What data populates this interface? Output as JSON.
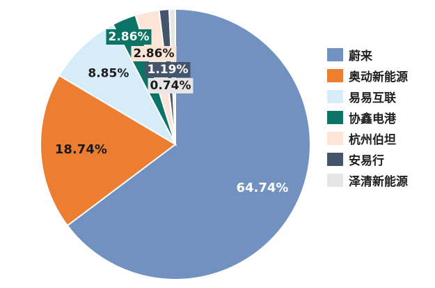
{
  "chart_data": {
    "type": "pie",
    "categories": [
      "蔚来",
      "奥动新能源",
      "易易互联",
      "协鑫电港",
      "杭州伯坦",
      "安易行",
      "泽清新能源"
    ],
    "values": [
      64.74,
      18.74,
      8.85,
      2.86,
      2.86,
      1.19,
      0.74
    ],
    "labels": [
      "64.74%",
      "18.74%",
      "8.85%",
      "2.86%",
      "2.86%",
      "1.19%",
      "0.74%"
    ],
    "colors": [
      "#7191c0",
      "#ed7d31",
      "#d6ecf8",
      "#0b7466",
      "#fce4d6",
      "#44546a",
      "#e6e6e6"
    ],
    "legend_position": "right",
    "title": ""
  },
  "legend": {
    "items": [
      {
        "label": "蔚来",
        "color": "#7191c0"
      },
      {
        "label": "奥动新能源",
        "color": "#ed7d31"
      },
      {
        "label": "易易互联",
        "color": "#d6ecf8"
      },
      {
        "label": "协鑫电港",
        "color": "#0b7466"
      },
      {
        "label": "杭州伯坦",
        "color": "#fce4d6"
      },
      {
        "label": "安易行",
        "color": "#44546a"
      },
      {
        "label": "泽清新能源",
        "color": "#e6e6e6"
      }
    ]
  }
}
